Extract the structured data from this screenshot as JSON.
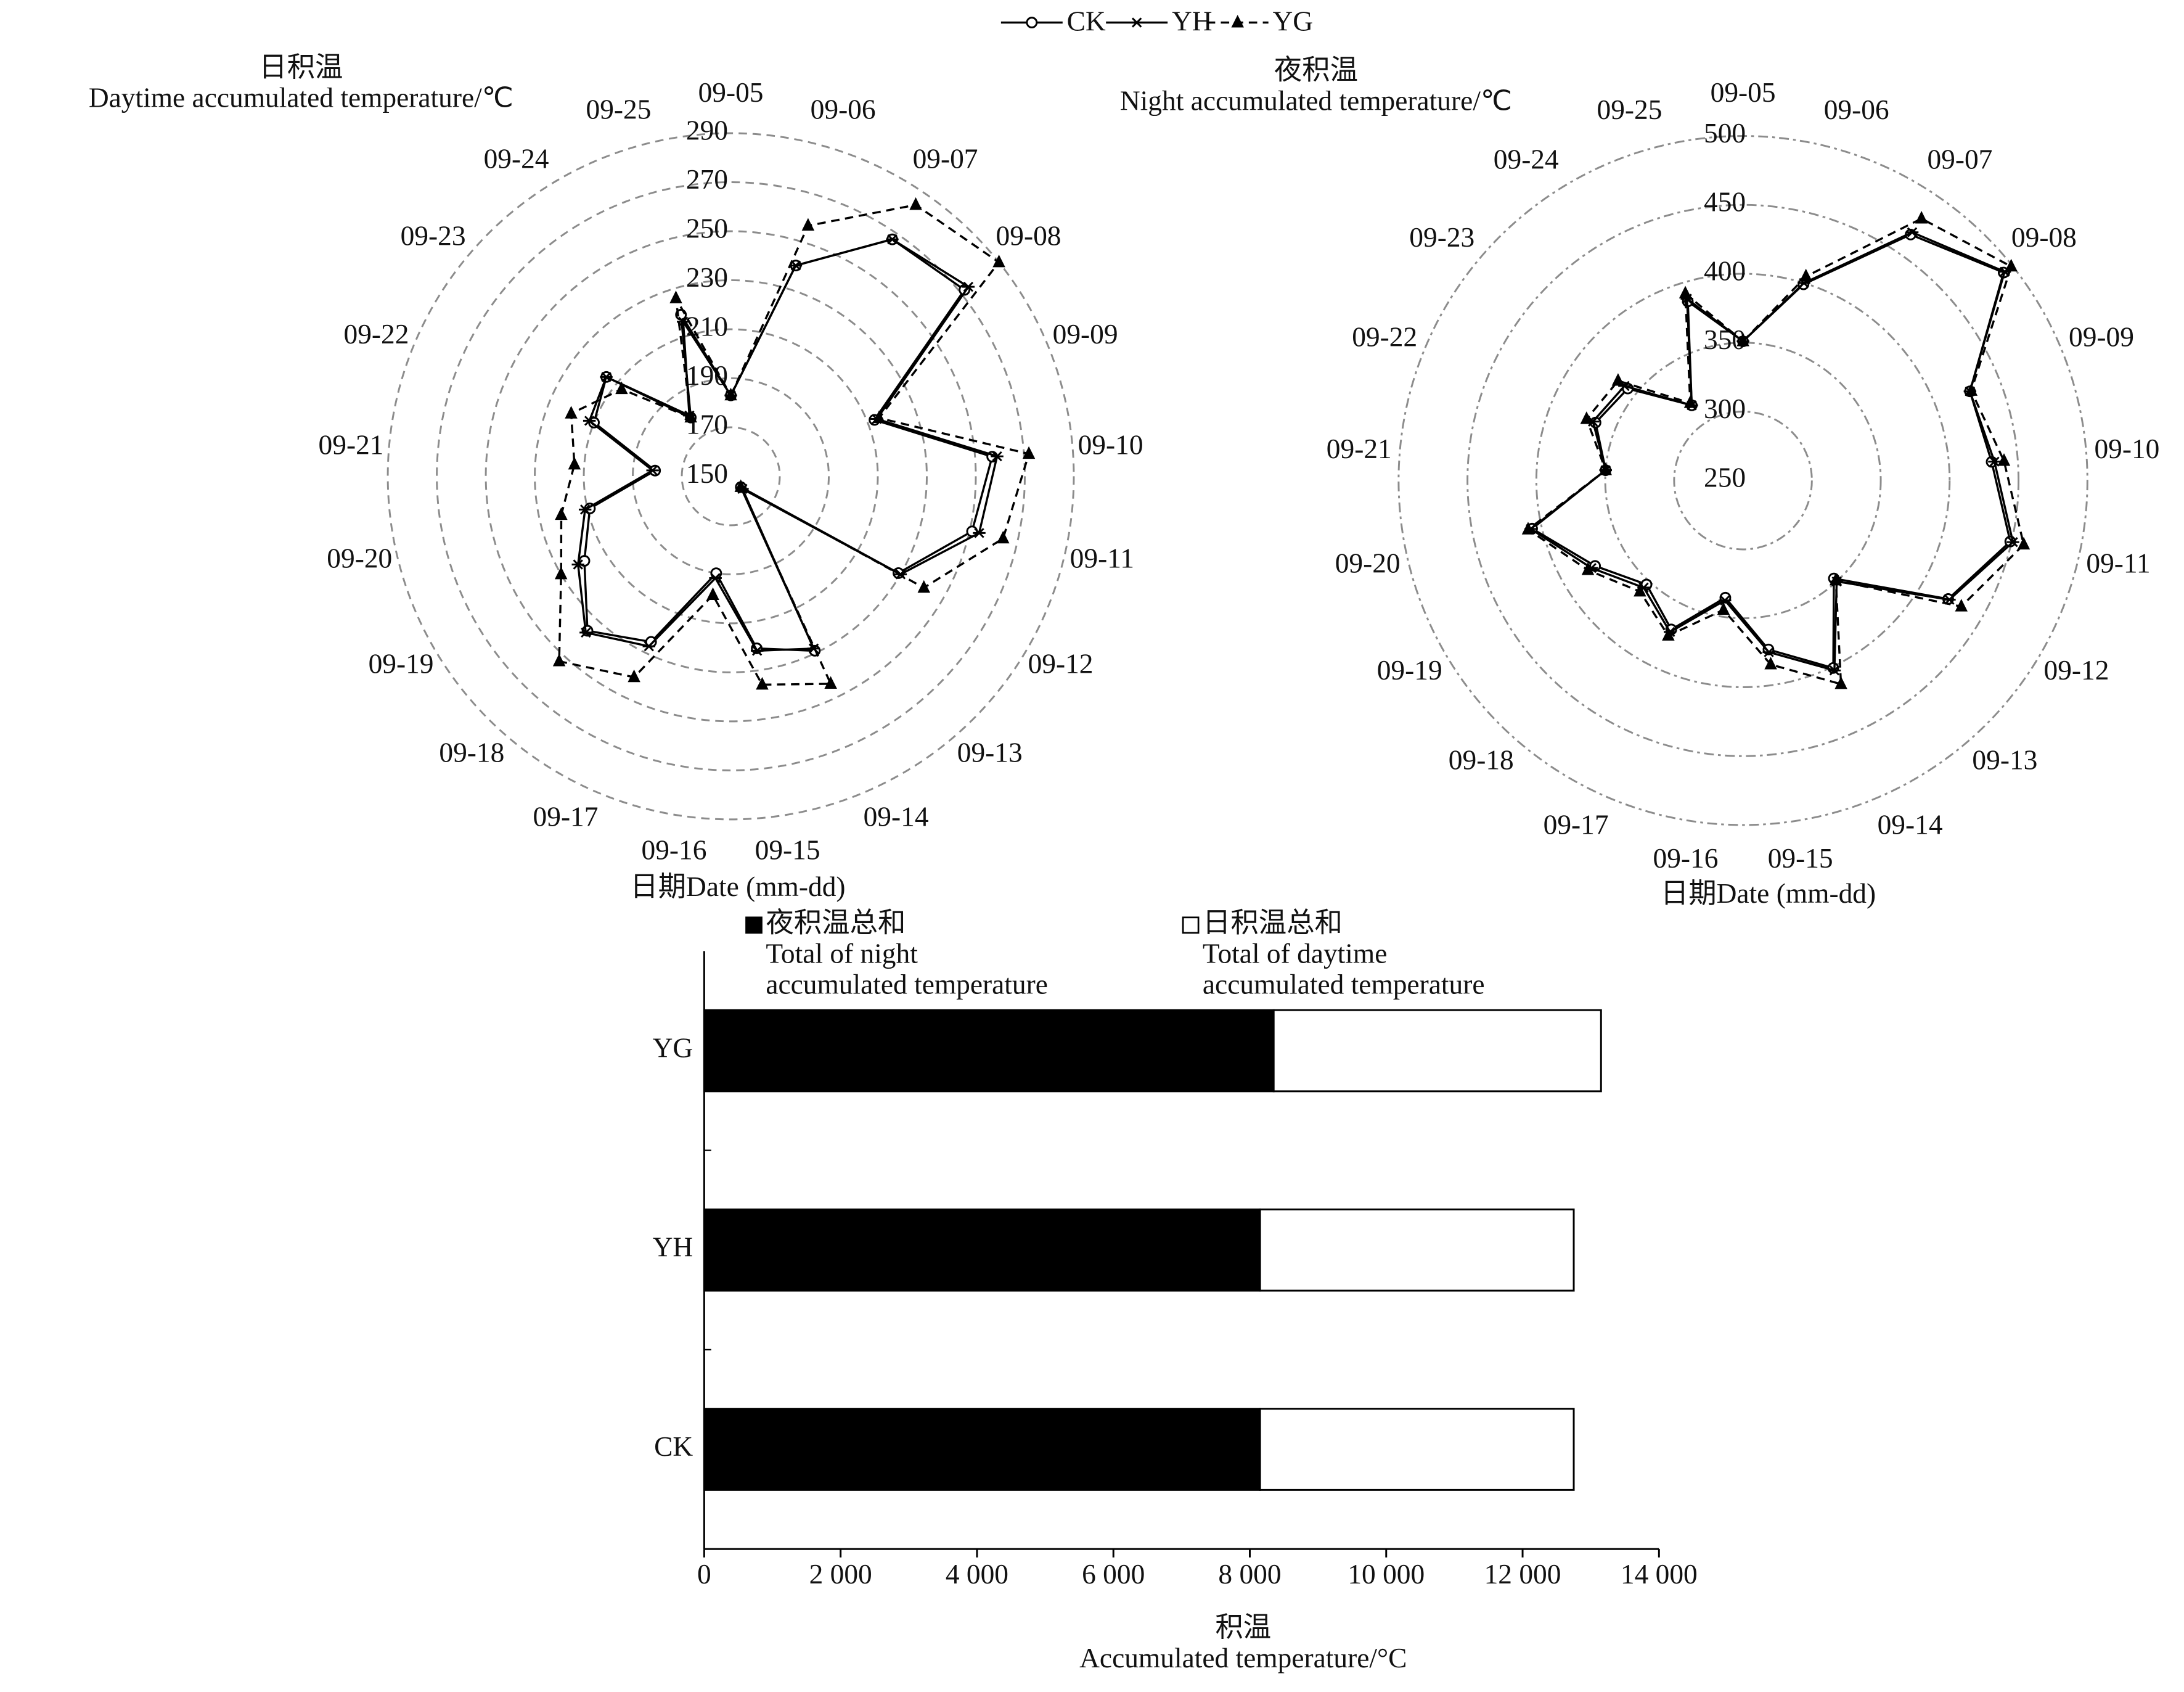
{
  "chart_data": [
    {
      "type": "radar",
      "title": "日积温\nDaytime accumulated temperature/℃",
      "x_label": "日期Date (mm-dd)",
      "categories": [
        "09-05",
        "09-06",
        "09-07",
        "09-08",
        "09-09",
        "09-10",
        "09-11",
        "09-12",
        "09-13",
        "09-14",
        "09-15",
        "09-16",
        "09-17",
        "09-18",
        "09-19",
        "09-20",
        "09-21",
        "09-22",
        "09-23",
        "09-24",
        "09-25"
      ],
      "ylim": [
        150,
        290
      ],
      "yticks": [
        150,
        170,
        190,
        210,
        230,
        250,
        270,
        290
      ],
      "grid": "dashed",
      "series": [
        {
          "name": "CK",
          "color": "#000000",
          "marker": "circle",
          "line": "solid",
          "values": [
            183,
            240,
            267,
            272,
            213,
            257,
            251,
            229,
            156,
            229,
            221,
            190,
            225,
            236,
            219,
            209,
            181,
            210,
            215,
            179,
            219
          ]
        },
        {
          "name": "YH",
          "color": "#000000",
          "marker": "asterisk",
          "line": "solid",
          "values": [
            183,
            240,
            267,
            274,
            214,
            259,
            254,
            230,
            157,
            228,
            222,
            192,
            227,
            237,
            222,
            211,
            182,
            212,
            215,
            180,
            216
          ]
        },
        {
          "name": "YG",
          "color": "#000000",
          "marker": "triangle",
          "line": "dashed",
          "values": [
            183,
            257,
            284,
            290,
            215,
            272,
            264,
            241,
            156,
            244,
            236,
            199,
            241,
            253,
            230,
            221,
            214,
            220,
            207,
            179,
            226
          ]
        }
      ]
    },
    {
      "type": "radar",
      "title": "夜积温\nNight accumulated temperature/℃",
      "x_label": "日期Date (mm-dd)",
      "categories": [
        "09-05",
        "09-06",
        "09-07",
        "09-08",
        "09-09",
        "09-10",
        "09-11",
        "09-12",
        "09-13",
        "09-14",
        "09-15",
        "09-16",
        "09-17",
        "09-18",
        "09-19",
        "09-20",
        "09-21",
        "09-22",
        "09-23",
        "09-24",
        "09-25"
      ],
      "ylim": [
        250,
        500
      ],
      "yticks": [
        250,
        300,
        350,
        400,
        450,
        500
      ],
      "grid": "dashdot",
      "series": [
        {
          "color": "#000000",
          "marker": "circle",
          "line": "solid",
          "values": [
            351,
            399,
            466,
            492,
            427,
            431,
            449,
            422,
            347,
            401,
            374,
            336,
            370,
            353,
            374,
            407,
            350,
            365,
            357,
            316,
            386
          ]
        },
        {
          "color": "#000000",
          "marker": "asterisk",
          "line": "solid",
          "values": [
            351,
            400,
            468,
            493,
            427,
            433,
            451,
            423,
            350,
            403,
            376,
            338,
            372,
            356,
            377,
            408,
            350,
            367,
            360,
            316,
            388
          ]
        },
        {
          "color": "#000000",
          "marker": "triangle",
          "line": "dashed",
          "values": [
            351,
            405,
            480,
            499,
            428,
            440,
            459,
            433,
            349,
            414,
            385,
            345,
            375,
            360,
            380,
            410,
            350,
            372,
            366,
            318,
            392
          ]
        }
      ]
    },
    {
      "type": "stacked-barh",
      "x_label": "积温\nAccumulated temperature/°C",
      "categories": [
        "YG",
        "YH",
        "CK"
      ],
      "series": [
        {
          "name": "夜积温总和\nTotal of night\naccumulated temperature",
          "color": "#000000",
          "values": [
            8350,
            8150,
            8150
          ]
        },
        {
          "name": "日积温总和\nTotal of daytime\naccumulated temperature",
          "color": "#ffffff",
          "values": [
            4800,
            4600,
            4600
          ]
        }
      ],
      "xlim": [
        0,
        14000
      ],
      "xticks": [
        0,
        {
          "value": 2000,
          "label": "2 000"
        },
        {
          "value": 4000,
          "label": "4 000"
        },
        {
          "value": 6000,
          "label": "6 000"
        },
        {
          "value": 8000,
          "label": "8 000"
        },
        {
          "value": 10000,
          "label": "10 000"
        },
        {
          "value": 12000,
          "label": "12 000"
        },
        {
          "value": 14000,
          "label": "14 000"
        }
      ]
    }
  ]
}
